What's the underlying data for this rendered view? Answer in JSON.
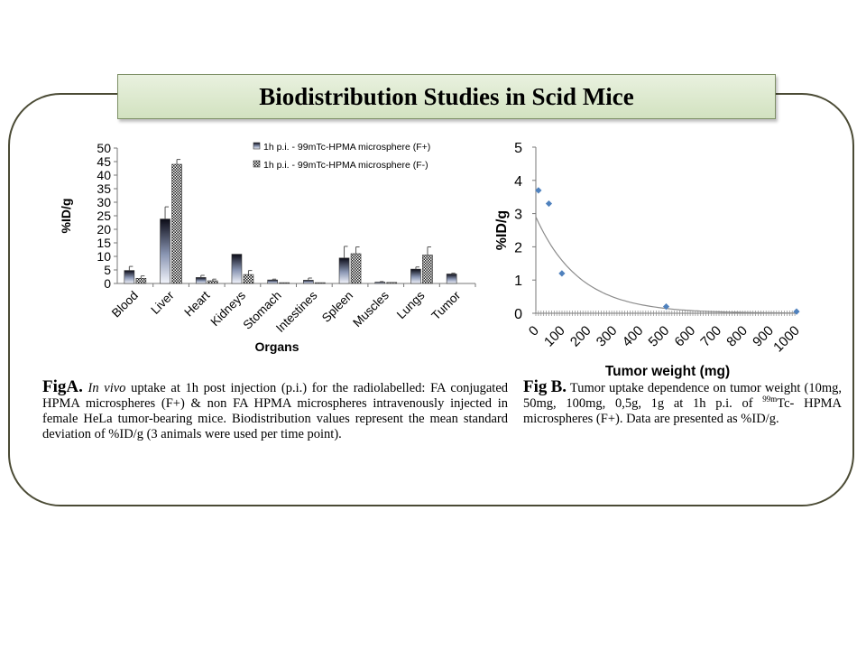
{
  "slide": {
    "title": "Biodistribution Studies in Scid Mice",
    "frame_color": "#4b4b35",
    "banner_color": "#dce8cf"
  },
  "caption_a": {
    "label_fig": "Fig",
    "label_letter": "A.",
    "italic_lead": "In vivo",
    "text": " uptake at 1h post injection (p.i.) for the radiolabelled: FA conjugated HPMA microspheres (F+) & non FA HPMA microspheres intravenously injected in female HeLa tumor-bearing mice. Biodistribution values represent the mean standard deviation of %ID/g (3 animals were used per time point)."
  },
  "caption_b": {
    "label_fig": "Fig",
    "label_letter": "B.",
    "text_before": "  Tumor uptake dependence on tumor weight (10mg, 50mg, 100mg, 0,5g, 1g at 1h p.i. of ",
    "sup": "99m",
    "text_after": "Tc- HPMA microspheres (F+). Data are presented as %ID/g."
  },
  "chart_data": [
    {
      "type": "bar",
      "title": "",
      "xlabel": "Organs",
      "ylabel": "%ID/g",
      "ylim": [
        0,
        50
      ],
      "yticks": [
        0,
        5,
        10,
        15,
        20,
        25,
        30,
        35,
        40,
        45,
        50
      ],
      "categories": [
        "Blood",
        "Liver",
        "Heart",
        "Kidneys",
        "Stomach",
        "Intestines",
        "Spleen",
        "Muscles",
        "Lungs",
        "Tumor"
      ],
      "legend_position": "top-right",
      "series": [
        {
          "name": "1h p.i. - 99mTc-HPMA microsphere (F+)",
          "pattern": "gradient",
          "values": [
            4.8,
            23.8,
            2.2,
            10.8,
            1.3,
            1.2,
            9.4,
            0.5,
            5.3,
            3.5
          ],
          "errors": [
            1.5,
            4.5,
            0.8,
            0,
            0.3,
            0.8,
            4.3,
            0.2,
            0.8,
            0.3
          ]
        },
        {
          "name": "1h p.i. - 99mTc-HPMA microsphere (F-)",
          "pattern": "crosshatch",
          "values": [
            1.9,
            44.0,
            1.0,
            3.3,
            0.3,
            0.3,
            11.0,
            0.4,
            10.5,
            0
          ],
          "errors": [
            0.9,
            1.8,
            0.6,
            1.5,
            0,
            0,
            2.5,
            0,
            3.0,
            0
          ]
        }
      ]
    },
    {
      "type": "scatter",
      "title": "",
      "xlabel": "Tumor weight  (mg)",
      "ylabel": "%ID/g",
      "xlim": [
        0,
        1000
      ],
      "ylim": [
        0,
        5
      ],
      "xticks": [
        0,
        100,
        200,
        300,
        400,
        500,
        600,
        700,
        800,
        900,
        1000
      ],
      "yticks": [
        0,
        1,
        2,
        3,
        4,
        5
      ],
      "marker_color": "#4f81bd",
      "points": [
        {
          "x": 10,
          "y": 3.7
        },
        {
          "x": 50,
          "y": 3.3
        },
        {
          "x": 100,
          "y": 1.2
        },
        {
          "x": 500,
          "y": 0.2
        },
        {
          "x": 1000,
          "y": 0.05
        }
      ],
      "trendline": {
        "type": "exponential",
        "a": 2.9,
        "b": 0.006
      }
    }
  ]
}
